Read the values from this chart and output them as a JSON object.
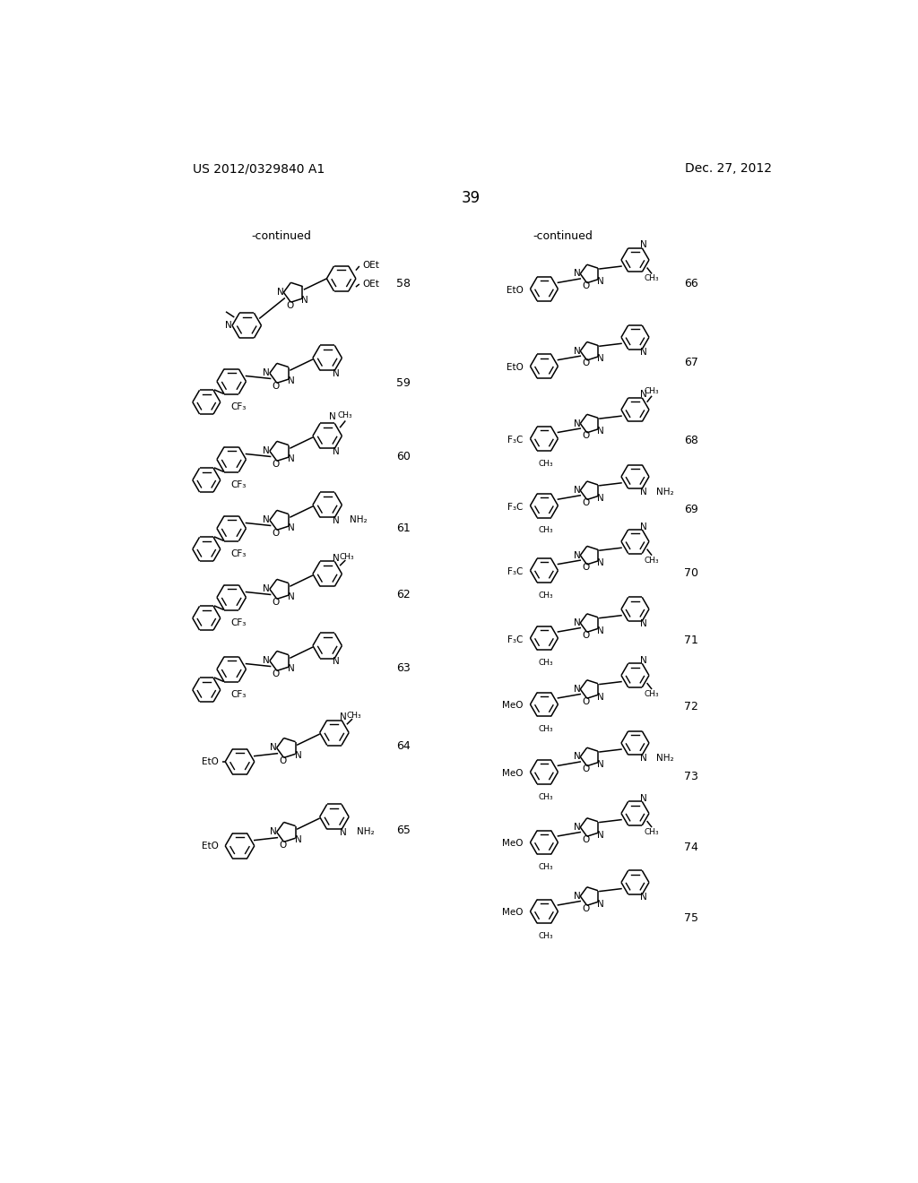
{
  "patent_number": "US 2012/0329840 A1",
  "date": "Dec. 27, 2012",
  "page_number": "39",
  "bg": "#ffffff",
  "left_header": "-continued",
  "right_header": "-continued",
  "comp_left": [
    58,
    59,
    60,
    61,
    62,
    63,
    64,
    65
  ],
  "comp_right": [
    66,
    67,
    68,
    69,
    70,
    71,
    72,
    73,
    74,
    75
  ]
}
